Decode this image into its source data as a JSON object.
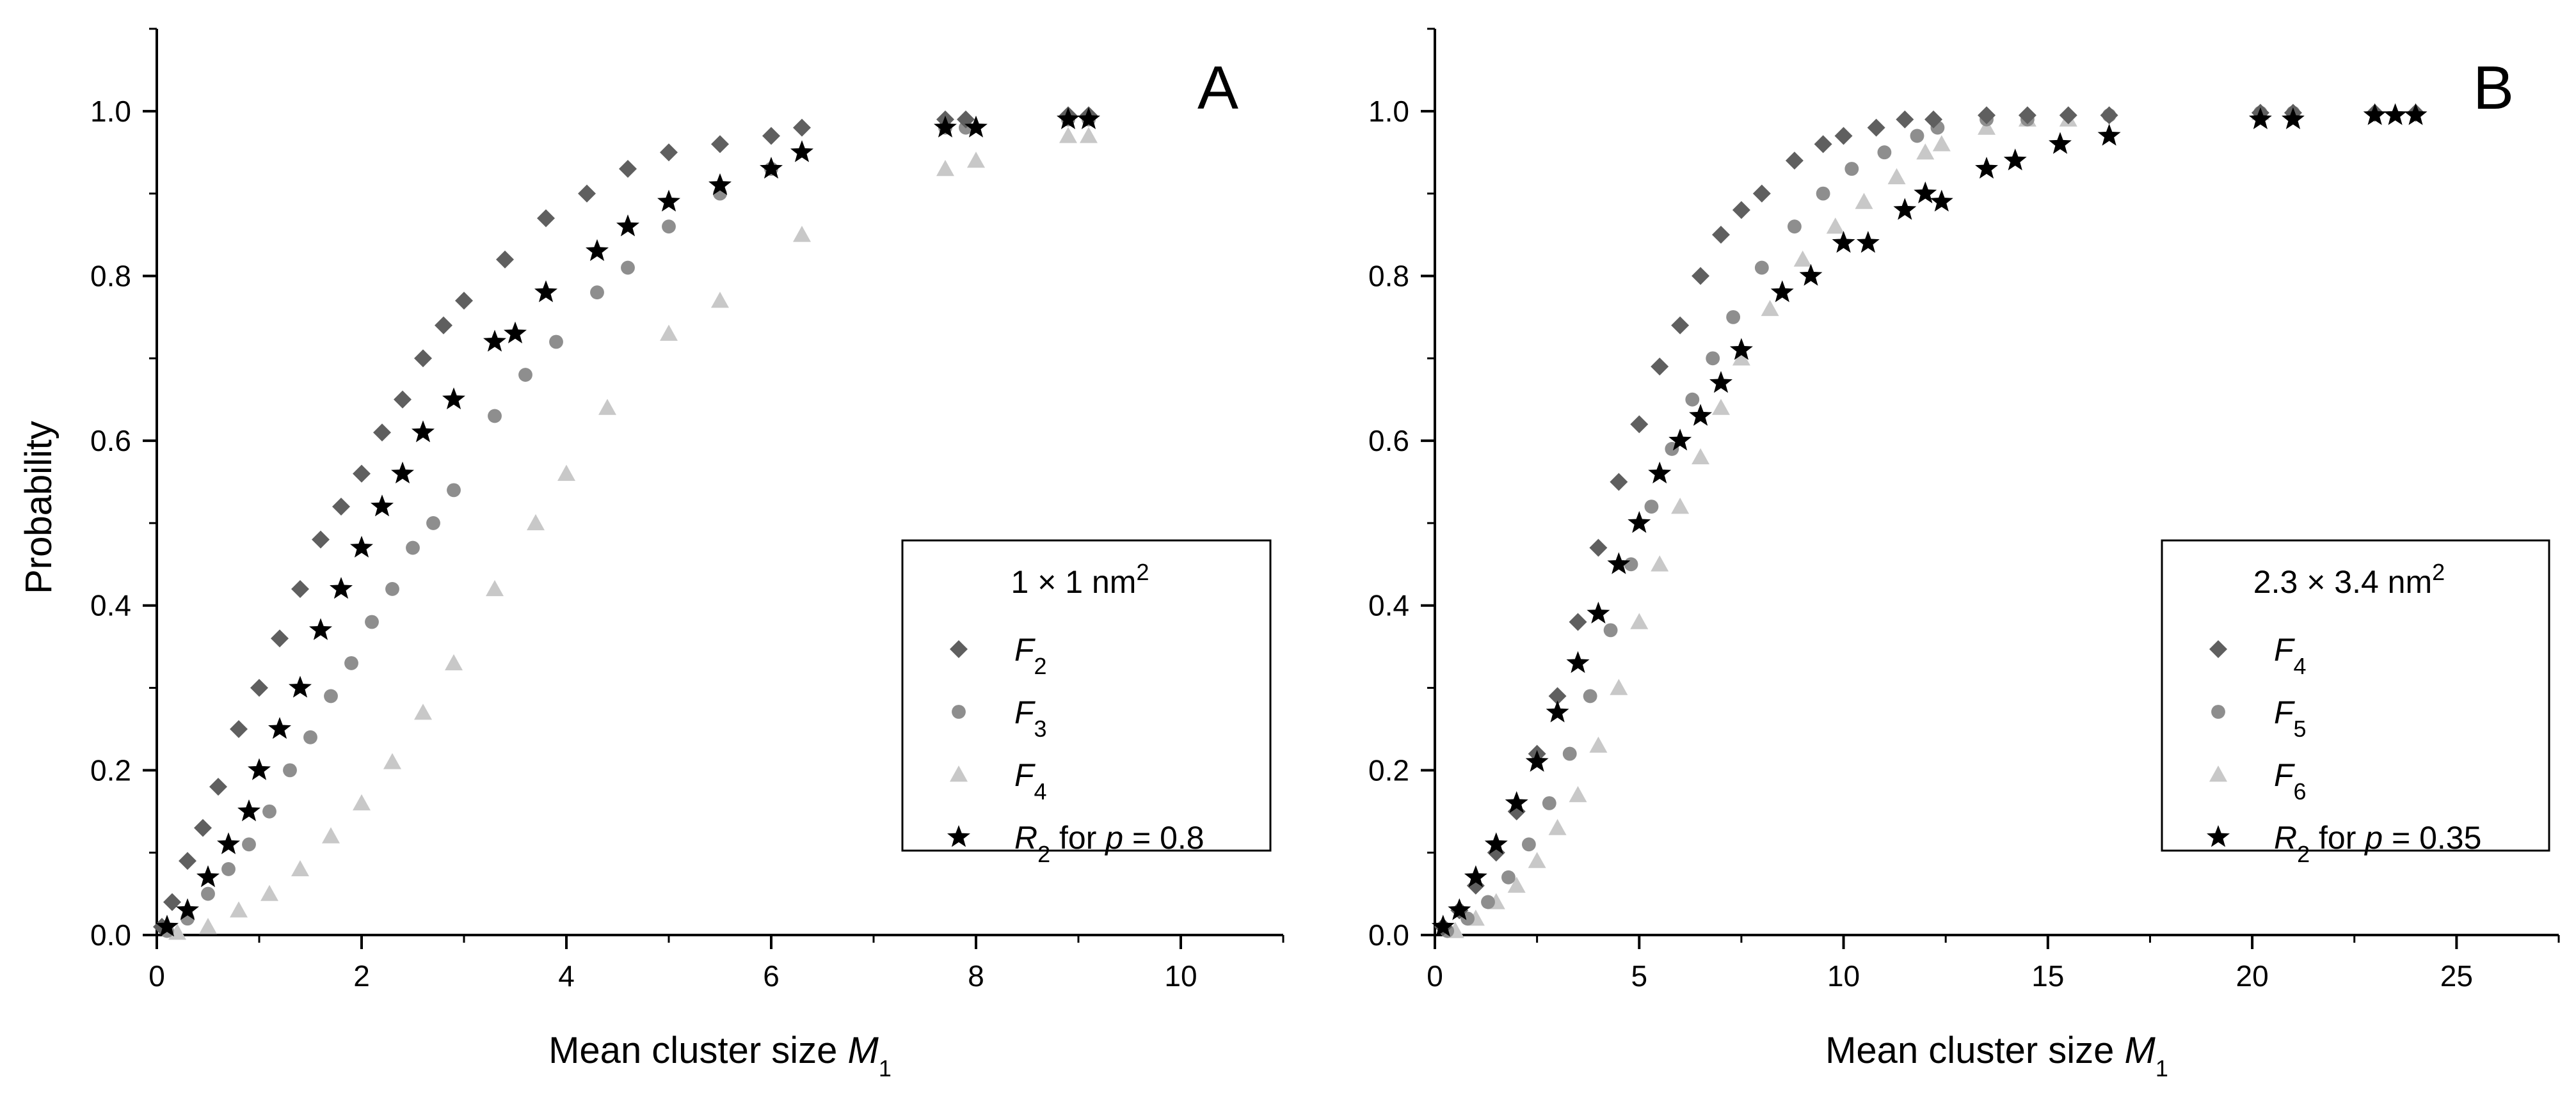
{
  "chart_data": [
    {
      "type": "scatter",
      "panel_label": "A",
      "xlabel_main": "Mean cluster size ",
      "xlabel_var": "M",
      "xlabel_sub": "1",
      "ylabel": "Probability",
      "xlim": [
        0,
        11
      ],
      "ylim": [
        0,
        1.1
      ],
      "xticks": [
        0,
        2,
        4,
        6,
        8,
        10
      ],
      "xtick_labels": [
        "0",
        "2",
        "4",
        "6",
        "8",
        "10"
      ],
      "yticks": [
        0,
        0.2,
        0.4,
        0.6,
        0.8,
        1.0
      ],
      "ytick_labels": [
        "0.0",
        "0.2",
        "0.4",
        "0.6",
        "0.8",
        "1.0"
      ],
      "legend": {
        "position": "lower-right",
        "title_main": "1 × 1 nm",
        "title_sup": "2",
        "entries": [
          {
            "sym": "F",
            "sub": "2",
            "tail": ""
          },
          {
            "sym": "F",
            "sub": "3",
            "tail": ""
          },
          {
            "sym": "F",
            "sub": "4",
            "tail": ""
          },
          {
            "sym": "R",
            "sub": "2",
            "tail": " for ",
            "pvar": "p",
            "pval": " = 0.8"
          }
        ]
      },
      "series": [
        {
          "name": "F2",
          "marker": "diamond",
          "color": "#5f5f5f",
          "x": [
            0.05,
            0.15,
            0.3,
            0.45,
            0.6,
            0.8,
            1.0,
            1.2,
            1.4,
            1.6,
            1.8,
            2.0,
            2.2,
            2.4,
            2.6,
            2.8,
            3.0,
            3.4,
            3.8,
            4.2,
            4.6,
            5.0,
            5.5,
            6.0,
            6.3,
            7.7,
            7.9,
            8.9,
            9.1
          ],
          "y": [
            0.01,
            0.04,
            0.09,
            0.13,
            0.18,
            0.25,
            0.3,
            0.36,
            0.42,
            0.48,
            0.52,
            0.56,
            0.61,
            0.65,
            0.7,
            0.74,
            0.77,
            0.82,
            0.87,
            0.9,
            0.93,
            0.95,
            0.96,
            0.97,
            0.98,
            0.99,
            0.99,
            0.995,
            0.995
          ]
        },
        {
          "name": "F3",
          "marker": "circle",
          "color": "#8e8e8e",
          "x": [
            0.1,
            0.3,
            0.5,
            0.7,
            0.9,
            1.1,
            1.3,
            1.5,
            1.7,
            1.9,
            2.1,
            2.3,
            2.5,
            2.7,
            2.9,
            3.3,
            3.6,
            3.9,
            4.3,
            4.6,
            5.0,
            5.5,
            6.0,
            7.7,
            7.9,
            8.9,
            9.1
          ],
          "y": [
            0.005,
            0.02,
            0.05,
            0.08,
            0.11,
            0.15,
            0.2,
            0.24,
            0.29,
            0.33,
            0.38,
            0.42,
            0.47,
            0.5,
            0.54,
            0.63,
            0.68,
            0.72,
            0.78,
            0.81,
            0.86,
            0.9,
            0.93,
            0.98,
            0.98,
            0.99,
            0.99
          ]
        },
        {
          "name": "F4",
          "marker": "triangle",
          "color": "#c8c8c8",
          "x": [
            0.2,
            0.5,
            0.8,
            1.1,
            1.4,
            1.7,
            2.0,
            2.3,
            2.6,
            2.9,
            3.3,
            3.7,
            4.0,
            4.4,
            5.0,
            5.5,
            6.3,
            7.7,
            8.0,
            8.9,
            9.1
          ],
          "y": [
            0.003,
            0.01,
            0.03,
            0.05,
            0.08,
            0.12,
            0.16,
            0.21,
            0.27,
            0.33,
            0.42,
            0.5,
            0.56,
            0.64,
            0.73,
            0.77,
            0.85,
            0.93,
            0.94,
            0.97,
            0.97
          ]
        },
        {
          "name": "R2",
          "marker": "star",
          "color": "#000000",
          "x": [
            0.1,
            0.3,
            0.5,
            0.7,
            0.9,
            1.0,
            1.2,
            1.4,
            1.6,
            1.8,
            2.0,
            2.2,
            2.4,
            2.6,
            2.9,
            3.3,
            3.5,
            3.8,
            4.3,
            4.6,
            5.0,
            5.5,
            6.0,
            6.3,
            7.7,
            8.0,
            8.9,
            9.1
          ],
          "y": [
            0.01,
            0.03,
            0.07,
            0.11,
            0.15,
            0.2,
            0.25,
            0.3,
            0.37,
            0.42,
            0.47,
            0.52,
            0.56,
            0.61,
            0.65,
            0.72,
            0.73,
            0.78,
            0.83,
            0.86,
            0.89,
            0.91,
            0.93,
            0.95,
            0.98,
            0.98,
            0.99,
            0.99
          ]
        }
      ]
    },
    {
      "type": "scatter",
      "panel_label": "B",
      "xlabel_main": "Mean cluster size ",
      "xlabel_var": "M",
      "xlabel_sub": "1",
      "ylabel": "",
      "xlim": [
        0,
        27.5
      ],
      "ylim": [
        0,
        1.1
      ],
      "xticks": [
        0,
        5,
        10,
        15,
        20,
        25
      ],
      "xtick_labels": [
        "0",
        "5",
        "10",
        "15",
        "20",
        "25"
      ],
      "yticks": [
        0,
        0.2,
        0.4,
        0.6,
        0.8,
        1.0
      ],
      "ytick_labels": [
        "0.0",
        "0.2",
        "0.4",
        "0.6",
        "0.8",
        "1.0"
      ],
      "legend": {
        "position": "lower-right",
        "title_main": "2.3 × 3.4 nm",
        "title_sup": "2",
        "entries": [
          {
            "sym": "F",
            "sub": "4",
            "tail": ""
          },
          {
            "sym": "F",
            "sub": "5",
            "tail": ""
          },
          {
            "sym": "F",
            "sub": "6",
            "tail": ""
          },
          {
            "sym": "R",
            "sub": "2",
            "tail": " for ",
            "pvar": "p",
            "pval": " = 0.35"
          }
        ]
      },
      "series": [
        {
          "name": "F4",
          "marker": "diamond",
          "color": "#5f5f5f",
          "x": [
            0.2,
            0.6,
            1.0,
            1.5,
            2.0,
            2.5,
            3.0,
            3.5,
            4.0,
            4.5,
            5.0,
            5.5,
            6.0,
            6.5,
            7.0,
            7.5,
            8.0,
            8.8,
            9.5,
            10.0,
            10.8,
            11.5,
            12.2,
            13.5,
            14.5,
            15.5,
            16.5,
            20.2,
            21.0,
            23.0,
            24.0
          ],
          "y": [
            0.01,
            0.03,
            0.06,
            0.1,
            0.15,
            0.22,
            0.29,
            0.38,
            0.47,
            0.55,
            0.62,
            0.69,
            0.74,
            0.8,
            0.85,
            0.88,
            0.9,
            0.94,
            0.96,
            0.97,
            0.98,
            0.99,
            0.99,
            0.995,
            0.995,
            0.995,
            0.995,
            0.998,
            0.998,
            0.998,
            0.998
          ]
        },
        {
          "name": "F5",
          "marker": "circle",
          "color": "#8e8e8e",
          "x": [
            0.3,
            0.8,
            1.3,
            1.8,
            2.3,
            2.8,
            3.3,
            3.8,
            4.3,
            4.8,
            5.3,
            5.8,
            6.3,
            6.8,
            7.3,
            8.0,
            8.8,
            9.5,
            10.2,
            11.0,
            11.8,
            12.3,
            13.5,
            14.5,
            16.5,
            20.2,
            21.0
          ],
          "y": [
            0.005,
            0.02,
            0.04,
            0.07,
            0.11,
            0.16,
            0.22,
            0.29,
            0.37,
            0.45,
            0.52,
            0.59,
            0.65,
            0.7,
            0.75,
            0.81,
            0.86,
            0.9,
            0.93,
            0.95,
            0.97,
            0.98,
            0.99,
            0.99,
            0.995,
            0.998,
            0.998
          ]
        },
        {
          "name": "F6",
          "marker": "triangle",
          "color": "#c8c8c8",
          "x": [
            0.5,
            1.0,
            1.5,
            2.0,
            2.5,
            3.0,
            3.5,
            4.0,
            4.5,
            5.0,
            5.5,
            6.0,
            6.5,
            7.0,
            7.5,
            8.2,
            9.0,
            9.8,
            10.5,
            11.3,
            12.0,
            12.4,
            13.5,
            14.5,
            15.5,
            20.2
          ],
          "y": [
            0.005,
            0.02,
            0.04,
            0.06,
            0.09,
            0.13,
            0.17,
            0.23,
            0.3,
            0.38,
            0.45,
            0.52,
            0.58,
            0.64,
            0.7,
            0.76,
            0.82,
            0.86,
            0.89,
            0.92,
            0.95,
            0.96,
            0.98,
            0.99,
            0.99,
            0.998
          ]
        },
        {
          "name": "R2",
          "marker": "star",
          "color": "#000000",
          "x": [
            0.2,
            0.6,
            1.0,
            1.5,
            2.0,
            2.5,
            3.0,
            3.5,
            4.0,
            4.5,
            5.0,
            5.5,
            6.0,
            6.5,
            7.0,
            7.5,
            8.5,
            9.2,
            10.0,
            10.6,
            11.5,
            12.0,
            12.4,
            13.5,
            14.2,
            15.3,
            16.5,
            20.2,
            21.0,
            23.0,
            23.5,
            24.0
          ],
          "y": [
            0.01,
            0.03,
            0.07,
            0.11,
            0.16,
            0.21,
            0.27,
            0.33,
            0.39,
            0.45,
            0.5,
            0.56,
            0.6,
            0.63,
            0.67,
            0.71,
            0.78,
            0.8,
            0.84,
            0.84,
            0.88,
            0.9,
            0.89,
            0.93,
            0.94,
            0.96,
            0.97,
            0.99,
            0.99,
            0.995,
            0.995,
            0.995
          ]
        }
      ]
    }
  ]
}
